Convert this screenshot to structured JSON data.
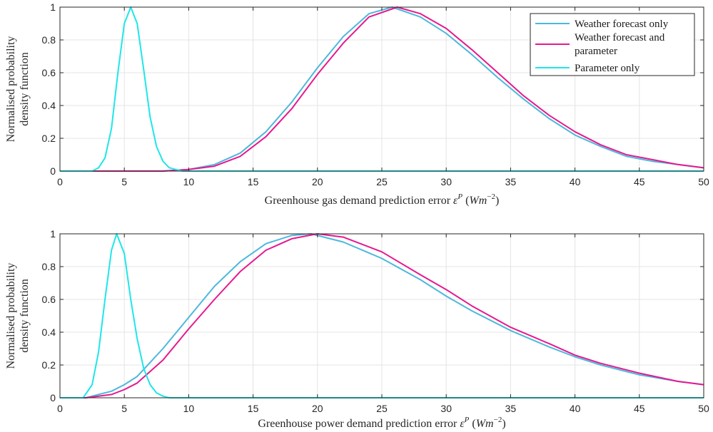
{
  "chart_data": [
    {
      "type": "line",
      "xlabel": "Greenhouse gas demand prediction error ε^P (Wm^-2)",
      "xlabel_parts": {
        "text": "Greenhouse gas demand prediction error ",
        "symbol": "ε",
        "sup": "P",
        "unit_open": "(",
        "unit_sym": "Wm",
        "unit_sup": "−2",
        "unit_close": ")"
      },
      "ylabel": [
        "Normalised probability",
        "density function"
      ],
      "xlim": [
        0,
        50
      ],
      "ylim": [
        0,
        1
      ],
      "xticks": [
        0,
        5,
        10,
        15,
        20,
        25,
        30,
        35,
        40,
        45,
        50
      ],
      "yticks": [
        0,
        0.2,
        0.4,
        0.6,
        0.8,
        1
      ],
      "grid": true,
      "legend_position": "top-right",
      "series": [
        {
          "name": "Weather forecast only",
          "color": "#4db8dc",
          "x": [
            0,
            8,
            10,
            12,
            14,
            16,
            18,
            20,
            22,
            24,
            25.8,
            28,
            30,
            32,
            34,
            36,
            38,
            40,
            42,
            44,
            46,
            48,
            50
          ],
          "y": [
            0,
            0,
            0.01,
            0.04,
            0.11,
            0.24,
            0.42,
            0.63,
            0.82,
            0.96,
            1.0,
            0.94,
            0.84,
            0.71,
            0.57,
            0.44,
            0.32,
            0.22,
            0.15,
            0.09,
            0.06,
            0.04,
            0.02
          ]
        },
        {
          "name": "Weather forecast and parameter",
          "color": "#e6198f",
          "x": [
            0,
            8,
            10,
            12,
            14,
            16,
            18,
            20,
            22,
            24,
            26.2,
            28,
            30,
            32,
            34,
            36,
            38,
            40,
            42,
            44,
            46,
            48,
            50
          ],
          "y": [
            0,
            0,
            0.01,
            0.03,
            0.09,
            0.21,
            0.38,
            0.59,
            0.78,
            0.94,
            1.0,
            0.96,
            0.87,
            0.74,
            0.6,
            0.46,
            0.34,
            0.24,
            0.16,
            0.1,
            0.07,
            0.04,
            0.02
          ]
        },
        {
          "name": "Parameter only",
          "color": "#1ee6e8",
          "x": [
            0,
            2.5,
            3,
            3.5,
            4,
            4.5,
            5,
            5.5,
            6,
            6.5,
            7,
            7.5,
            8,
            8.5,
            9,
            9.5,
            10,
            50
          ],
          "y": [
            0,
            0,
            0.02,
            0.08,
            0.26,
            0.6,
            0.9,
            1.0,
            0.9,
            0.62,
            0.33,
            0.15,
            0.06,
            0.02,
            0.01,
            0,
            0,
            0
          ]
        }
      ]
    },
    {
      "type": "line",
      "xlabel": "Greenhouse power demand prediction error ε^P (Wm^-2)",
      "xlabel_parts": {
        "text": "Greenhouse power demand prediction error ",
        "symbol": "ε",
        "sup": "P",
        "unit_open": "(",
        "unit_sym": "Wm",
        "unit_sup": "−2",
        "unit_close": ")"
      },
      "ylabel": [
        "Normalised probability",
        "density function"
      ],
      "xlim": [
        0,
        50
      ],
      "ylim": [
        0,
        1
      ],
      "xticks": [
        0,
        5,
        10,
        15,
        20,
        25,
        30,
        35,
        40,
        45,
        50
      ],
      "yticks": [
        0,
        0.2,
        0.4,
        0.6,
        0.8,
        1
      ],
      "grid": true,
      "series": [
        {
          "name": "Weather forecast only",
          "color": "#4db8dc",
          "x": [
            0,
            1,
            2,
            3,
            4,
            5,
            6,
            8,
            10,
            12,
            14,
            16,
            18,
            19.5,
            22,
            25,
            28,
            30,
            32,
            35,
            38,
            40,
            42,
            45,
            48,
            50
          ],
          "y": [
            0,
            0,
            0,
            0.02,
            0.04,
            0.08,
            0.13,
            0.3,
            0.49,
            0.68,
            0.83,
            0.94,
            0.99,
            1.0,
            0.95,
            0.85,
            0.72,
            0.62,
            0.53,
            0.41,
            0.31,
            0.25,
            0.2,
            0.14,
            0.1,
            0.08
          ]
        },
        {
          "name": "Weather forecast and parameter",
          "color": "#e6198f",
          "x": [
            0,
            1,
            2,
            3,
            4,
            5,
            6,
            8,
            10,
            12,
            14,
            16,
            18,
            20,
            22,
            25,
            28,
            30,
            32,
            35,
            38,
            40,
            42,
            45,
            48,
            50
          ],
          "y": [
            0,
            0,
            0,
            0.01,
            0.02,
            0.05,
            0.09,
            0.23,
            0.42,
            0.6,
            0.77,
            0.9,
            0.97,
            1.0,
            0.98,
            0.89,
            0.75,
            0.66,
            0.56,
            0.43,
            0.33,
            0.26,
            0.21,
            0.15,
            0.1,
            0.08
          ]
        },
        {
          "name": "Parameter only",
          "color": "#1ee6e8",
          "x": [
            0,
            1.8,
            2.5,
            3,
            3.5,
            4,
            4.4,
            5,
            5.5,
            6,
            6.5,
            7,
            7.5,
            8,
            8.5,
            9,
            50
          ],
          "y": [
            0,
            0,
            0.08,
            0.28,
            0.6,
            0.9,
            1.0,
            0.88,
            0.6,
            0.36,
            0.18,
            0.08,
            0.03,
            0.01,
            0,
            0,
            0
          ]
        }
      ]
    }
  ]
}
